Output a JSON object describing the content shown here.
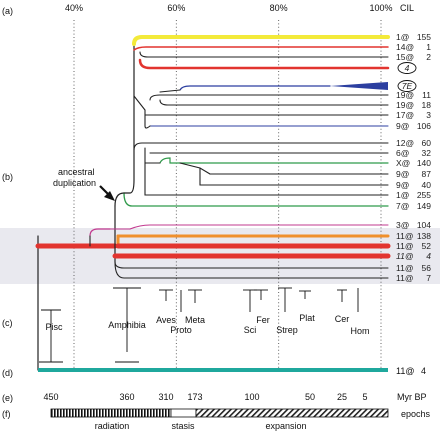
{
  "panels": [
    "(a)",
    "(b)",
    "(c)",
    "(d)",
    "(e)",
    "(f)"
  ],
  "top_axis": {
    "ticks": [
      {
        "label": "40%",
        "value": 40
      },
      {
        "label": "60%",
        "value": 60
      },
      {
        "label": "80%",
        "value": 80
      },
      {
        "label": "100%",
        "value": 100
      }
    ],
    "unit_label": "CIL"
  },
  "leaves": [
    {
      "label": "1@",
      "count": "155",
      "italic": false
    },
    {
      "label": "14@",
      "count": "1",
      "italic": false
    },
    {
      "label": "15@",
      "count": "2",
      "italic": false
    },
    {
      "label": "",
      "count": "4",
      "italic": true,
      "circled": true
    },
    {
      "label": "",
      "count": "7E",
      "italic": true,
      "circled": true
    },
    {
      "label": "19@",
      "count": "11",
      "italic": false
    },
    {
      "label": "19@",
      "count": "18",
      "italic": false
    },
    {
      "label": "17@",
      "count": "3",
      "italic": false
    },
    {
      "label": "9@",
      "count": "106",
      "italic": false
    },
    {
      "label": "12@",
      "count": "60",
      "italic": false
    },
    {
      "label": "6@",
      "count": "32",
      "italic": false
    },
    {
      "label": "X@",
      "count": "140",
      "italic": false
    },
    {
      "label": "9@",
      "count": "87",
      "italic": false
    },
    {
      "label": "9@",
      "count": "40",
      "italic": false
    },
    {
      "label": "1@",
      "count": "255",
      "italic": false
    },
    {
      "label": "7@",
      "count": "149",
      "italic": false
    },
    {
      "label": "3@",
      "count": "104",
      "italic": false
    },
    {
      "label": "11@",
      "count": "138",
      "italic": false
    },
    {
      "label": "11@",
      "count": "52",
      "italic": false
    },
    {
      "label": "11@",
      "count": "4",
      "italic": true
    },
    {
      "label": "11@",
      "count": "56",
      "italic": false
    },
    {
      "label": "11@",
      "count": "7",
      "italic": false
    }
  ],
  "annotation": {
    "line1": "ancestral",
    "line2": "duplication"
  },
  "taxa": [
    {
      "label": "Pisc"
    },
    {
      "label": "Amphibia"
    },
    {
      "label": "Aves"
    },
    {
      "label": "Proto"
    },
    {
      "label": "Meta"
    },
    {
      "label": "Sci"
    },
    {
      "label": "Fer"
    },
    {
      "label": "Strep"
    },
    {
      "label": "Plat"
    },
    {
      "label": "Cer"
    },
    {
      "label": "Hom"
    }
  ],
  "panel_d_leaf": {
    "label": "11@",
    "count": "4"
  },
  "time_axis": {
    "ticks": [
      "450",
      "360",
      "310",
      "173",
      "100",
      "50",
      "25",
      "5"
    ],
    "unit": "Myr BP"
  },
  "epochs": {
    "title": "epochs",
    "names": [
      "radiation",
      "stasis",
      "expansion"
    ]
  },
  "colors": {
    "yellow": "#f3ea3a",
    "red": "#e2342f",
    "blue": "#2c3fa0",
    "green": "#2f9a4a",
    "magenta": "#c2398f",
    "teal": "#1fa89d",
    "pink": "#e8507a",
    "orange": "#f0902c",
    "band": "#e9e9ef"
  }
}
